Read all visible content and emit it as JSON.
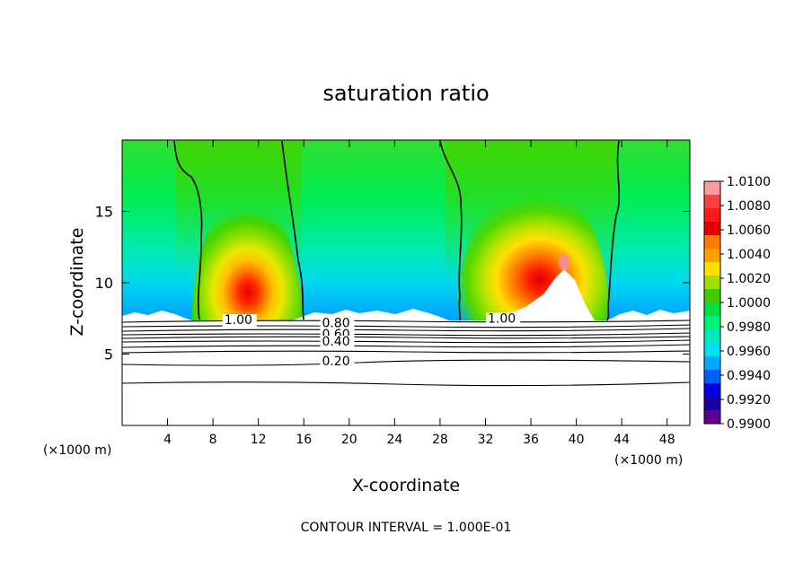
{
  "chart_data": {
    "type": "heatmap",
    "title": "saturation ratio",
    "xlabel": "X-coordinate",
    "ylabel": "Z-coordinate",
    "x_unit_label": "(×1000 m)",
    "z_unit_label": "(×1000 m)",
    "footer": "CONTOUR INTERVAL = 1.000E-01",
    "xlim": [
      0,
      50
    ],
    "ylim": [
      0,
      20
    ],
    "x_ticks": [
      "4",
      "8",
      "12",
      "16",
      "20",
      "24",
      "28",
      "32",
      "36",
      "40",
      "44",
      "48"
    ],
    "x_tick_values": [
      4,
      8,
      12,
      16,
      20,
      24,
      28,
      32,
      36,
      40,
      44,
      48
    ],
    "y_ticks": [
      "5",
      "10",
      "15"
    ],
    "y_tick_values": [
      5,
      10,
      15
    ],
    "colorbar": {
      "labels": [
        "1.0100",
        "1.0080",
        "1.0060",
        "1.0040",
        "1.0020",
        "1.0000",
        "0.9980",
        "0.9960",
        "0.9940",
        "0.9920",
        "0.9900"
      ],
      "values": [
        1.01,
        1.008,
        1.006,
        1.004,
        1.002,
        1.0,
        0.998,
        0.996,
        0.994,
        0.992,
        0.99
      ],
      "colors": [
        "#ff9a9a",
        "#ff4040",
        "#ff1a1a",
        "#e20000",
        "#ff7a00",
        "#ffa000",
        "#ffe000",
        "#a0e000",
        "#40cc00",
        "#00e040",
        "#00f07a",
        "#00e8c0",
        "#00e0f0",
        "#00a8ff",
        "#0060ff",
        "#0000e0",
        "#1a00a0",
        "#600090"
      ]
    },
    "contour_labels": [
      {
        "text": "1.00",
        "x": 9.0,
        "z": 7.1
      },
      {
        "text": "0.80",
        "x": 17.6,
        "z": 6.9
      },
      {
        "text": "0.60",
        "x": 17.6,
        "z": 6.1
      },
      {
        "text": "0.40",
        "x": 17.6,
        "z": 5.6
      },
      {
        "text": "0.20",
        "x": 17.6,
        "z": 4.2
      },
      {
        "text": "1.00",
        "x": 32.2,
        "z": 7.2
      }
    ],
    "saturation_contours_x": [
      [
        5.0,
        5.2,
        5.6,
        6.2,
        6.6
      ],
      [
        14.3,
        14.6,
        15.0,
        15.6,
        16.0
      ],
      [
        28.3,
        28.6,
        29.0,
        29.4,
        29.6
      ],
      [
        43.5,
        43.3,
        43.0,
        42.8,
        42.3
      ]
    ],
    "saturation_contours_z": [
      19.8,
      15.0,
      11.0,
      8.5,
      7.3
    ],
    "high_cores": [
      {
        "x": 11.0,
        "z": 10.0,
        "peak": 1.0065
      },
      {
        "x": 38.5,
        "z": 11.0,
        "peak": 1.008
      }
    ],
    "cloud_base_z": 7.3
  }
}
